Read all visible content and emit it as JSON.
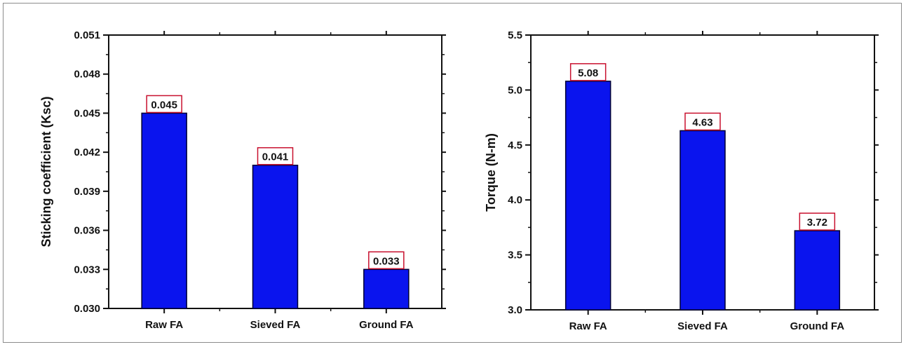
{
  "chart_data": [
    {
      "type": "bar",
      "categories": [
        "Raw FA",
        "Sieved FA",
        "Ground FA"
      ],
      "values": [
        0.045,
        0.041,
        0.033
      ],
      "value_labels": [
        "0.045",
        "0.041",
        "0.033"
      ],
      "title": "",
      "xlabel": "",
      "ylabel": "Sticking coefficient (Ksc)",
      "ylim": [
        0.03,
        0.051
      ],
      "yticks": [
        "0.030",
        "0.033",
        "0.036",
        "0.039",
        "0.042",
        "0.045",
        "0.048",
        "0.051"
      ],
      "bar_color": "#0a14ee",
      "label_box_color": "#c8102e",
      "grid": false,
      "legend": "none"
    },
    {
      "type": "bar",
      "categories": [
        "Raw FA",
        "Sieved FA",
        "Ground FA"
      ],
      "values": [
        5.08,
        4.63,
        3.72
      ],
      "value_labels": [
        "5.08",
        "4.63",
        "3.72"
      ],
      "title": "",
      "xlabel": "",
      "ylabel": "Torque (N-m)",
      "ylim": [
        3.0,
        5.5
      ],
      "yticks": [
        "3.0",
        "3.5",
        "4.0",
        "4.5",
        "5.0",
        "5.5"
      ],
      "bar_color": "#0a14ee",
      "label_box_color": "#c8102e",
      "grid": false,
      "legend": "none"
    }
  ]
}
